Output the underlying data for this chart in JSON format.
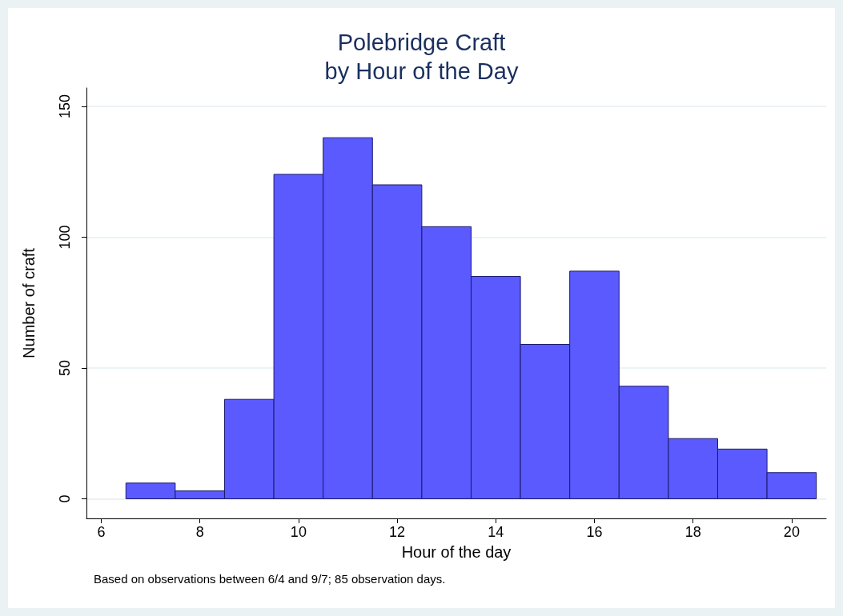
{
  "chart_data": {
    "type": "histogram",
    "title": "Polebridge Craft\nby Hour of the Day",
    "xlabel": "Hour of the day",
    "ylabel": "Number of craft",
    "annotations": [
      "Based on observations between 6/4 and 9/7; 85 observation days."
    ],
    "bins": [
      6.5,
      7.5,
      8.5,
      9.5,
      10.5,
      11.5,
      12.5,
      13.5,
      14.5,
      15.5,
      16.5,
      17.5,
      18.5,
      19.5,
      20.5
    ],
    "values": [
      6,
      3,
      38,
      124,
      138,
      120,
      104,
      85,
      59,
      87,
      43,
      23,
      19,
      10
    ],
    "color": "#5a5aff",
    "xlim": [
      5.7,
      20.7
    ],
    "xticks": [
      6,
      8,
      10,
      12,
      14,
      16,
      18,
      20
    ],
    "ylim": [
      -7.5,
      157
    ],
    "yticks": [
      0,
      50,
      100,
      150
    ],
    "grid": "y"
  }
}
